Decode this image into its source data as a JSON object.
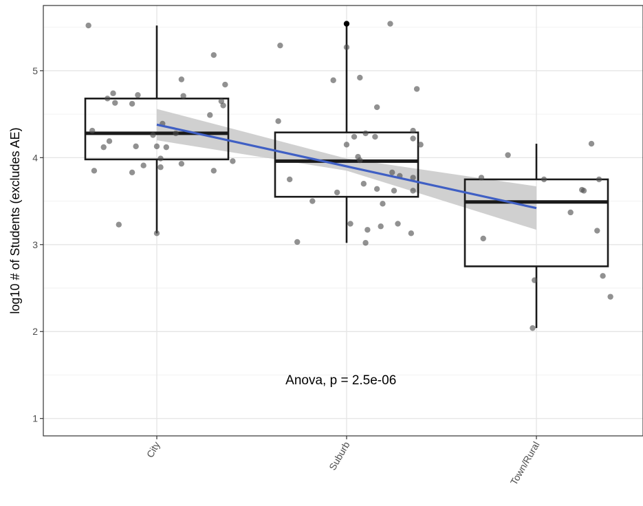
{
  "chart_data": {
    "type": "box",
    "title": "",
    "xlabel": "",
    "ylabel": "log10 # of Students (excludes AE)",
    "ylim": [
      0.8,
      5.75
    ],
    "yticks": [
      1,
      2,
      3,
      4,
      5
    ],
    "categories": [
      "City",
      "Suburb",
      "Town/Rural"
    ],
    "grid": true,
    "theme": "bw",
    "colors": {
      "box": "#1a1a1a",
      "points": "#4d4d4d",
      "trend": "#3f5fc4",
      "ribbon": "#c8c8c8",
      "grid_major": "#e6e6e6",
      "grid_minor": "#f2f2f2",
      "panel_border": "#333333"
    },
    "boxes": [
      {
        "category": "City",
        "whisker_low": 3.13,
        "q1": 3.98,
        "median": 4.28,
        "q3": 4.68,
        "whisker_high": 5.52
      },
      {
        "category": "Suburb",
        "whisker_low": 3.02,
        "q1": 3.55,
        "median": 3.96,
        "q3": 4.29,
        "whisker_high": 5.54
      },
      {
        "category": "Town/Rural",
        "whisker_low": 2.04,
        "q1": 2.75,
        "median": 3.49,
        "q3": 3.75,
        "whisker_high": 4.16
      }
    ],
    "outliers": [
      {
        "category": "Suburb",
        "y": 5.54
      }
    ],
    "jitter_points": [
      {
        "x": 0.64,
        "y": 5.52
      },
      {
        "x": 0.66,
        "y": 4.31
      },
      {
        "x": 0.67,
        "y": 3.85
      },
      {
        "x": 0.72,
        "y": 4.12
      },
      {
        "x": 0.74,
        "y": 4.68
      },
      {
        "x": 0.75,
        "y": 4.19
      },
      {
        "x": 0.77,
        "y": 4.74
      },
      {
        "x": 0.78,
        "y": 4.63
      },
      {
        "x": 0.8,
        "y": 3.23
      },
      {
        "x": 0.87,
        "y": 4.62
      },
      {
        "x": 0.87,
        "y": 3.83
      },
      {
        "x": 0.89,
        "y": 4.13
      },
      {
        "x": 0.9,
        "y": 4.72
      },
      {
        "x": 0.93,
        "y": 3.91
      },
      {
        "x": 0.98,
        "y": 4.26
      },
      {
        "x": 1.0,
        "y": 4.13
      },
      {
        "x": 1.02,
        "y": 3.99
      },
      {
        "x": 1.03,
        "y": 4.39
      },
      {
        "x": 1.0,
        "y": 3.13
      },
      {
        "x": 1.02,
        "y": 3.89
      },
      {
        "x": 1.05,
        "y": 4.12
      },
      {
        "x": 1.1,
        "y": 4.28
      },
      {
        "x": 1.13,
        "y": 4.9
      },
      {
        "x": 1.14,
        "y": 4.71
      },
      {
        "x": 1.13,
        "y": 3.93
      },
      {
        "x": 1.28,
        "y": 4.49
      },
      {
        "x": 1.3,
        "y": 5.18
      },
      {
        "x": 1.3,
        "y": 3.85
      },
      {
        "x": 1.34,
        "y": 4.65
      },
      {
        "x": 1.35,
        "y": 4.6
      },
      {
        "x": 1.36,
        "y": 4.84
      },
      {
        "x": 1.4,
        "y": 3.96
      },
      {
        "x": 1.64,
        "y": 4.42
      },
      {
        "x": 1.65,
        "y": 5.29
      },
      {
        "x": 1.7,
        "y": 3.75
      },
      {
        "x": 1.74,
        "y": 3.03
      },
      {
        "x": 1.82,
        "y": 3.5
      },
      {
        "x": 1.93,
        "y": 4.89
      },
      {
        "x": 1.95,
        "y": 3.6
      },
      {
        "x": 2.0,
        "y": 5.27
      },
      {
        "x": 2.0,
        "y": 4.15
      },
      {
        "x": 2.02,
        "y": 3.24
      },
      {
        "x": 2.04,
        "y": 4.24
      },
      {
        "x": 2.06,
        "y": 4.01
      },
      {
        "x": 2.07,
        "y": 3.97
      },
      {
        "x": 2.07,
        "y": 4.92
      },
      {
        "x": 2.09,
        "y": 3.7
      },
      {
        "x": 2.1,
        "y": 4.28
      },
      {
        "x": 2.1,
        "y": 3.02
      },
      {
        "x": 2.11,
        "y": 3.17
      },
      {
        "x": 2.15,
        "y": 4.24
      },
      {
        "x": 2.16,
        "y": 3.64
      },
      {
        "x": 2.16,
        "y": 4.58
      },
      {
        "x": 2.18,
        "y": 3.21
      },
      {
        "x": 2.19,
        "y": 3.47
      },
      {
        "x": 2.23,
        "y": 5.54
      },
      {
        "x": 2.24,
        "y": 3.83
      },
      {
        "x": 2.25,
        "y": 3.62
      },
      {
        "x": 2.27,
        "y": 3.24
      },
      {
        "x": 2.28,
        "y": 3.79
      },
      {
        "x": 2.34,
        "y": 3.13
      },
      {
        "x": 2.35,
        "y": 4.31
      },
      {
        "x": 2.35,
        "y": 4.22
      },
      {
        "x": 2.35,
        "y": 3.77
      },
      {
        "x": 2.35,
        "y": 3.62
      },
      {
        "x": 2.37,
        "y": 4.79
      },
      {
        "x": 2.39,
        "y": 4.15
      },
      {
        "x": 2.71,
        "y": 3.77
      },
      {
        "x": 2.72,
        "y": 3.07
      },
      {
        "x": 2.85,
        "y": 4.03
      },
      {
        "x": 2.98,
        "y": 2.04
      },
      {
        "x": 2.99,
        "y": 2.59
      },
      {
        "x": 3.04,
        "y": 3.75
      },
      {
        "x": 3.18,
        "y": 3.37
      },
      {
        "x": 3.24,
        "y": 3.63
      },
      {
        "x": 3.25,
        "y": 3.62
      },
      {
        "x": 3.29,
        "y": 4.16
      },
      {
        "x": 3.32,
        "y": 3.16
      },
      {
        "x": 3.33,
        "y": 3.75
      },
      {
        "x": 3.35,
        "y": 2.64
      },
      {
        "x": 3.39,
        "y": 2.4
      }
    ],
    "trend_line": {
      "x": [
        1,
        3
      ],
      "y": [
        4.38,
        3.42
      ]
    },
    "confidence_band": {
      "x": [
        1,
        2,
        3
      ],
      "upper": [
        4.56,
        3.99,
        3.67
      ],
      "lower": [
        4.2,
        3.85,
        3.17
      ]
    },
    "annotations": [
      {
        "text": "Anova, p = 2.5e-06",
        "x": 1.97,
        "y": 1.45
      }
    ]
  }
}
